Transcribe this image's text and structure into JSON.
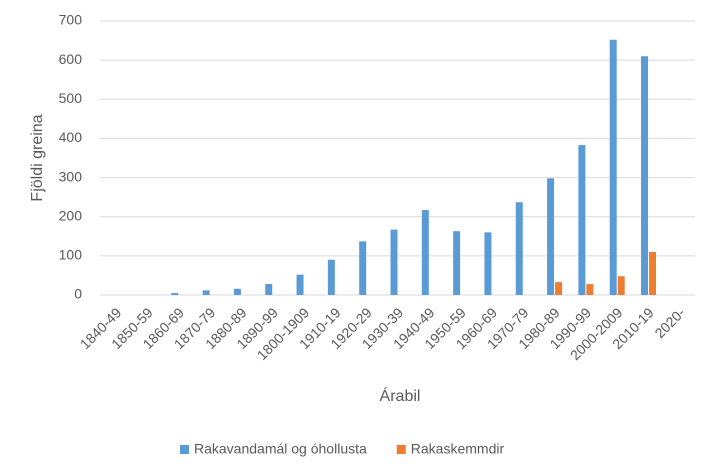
{
  "chart_data": {
    "type": "bar",
    "x_label": "Árabil",
    "y_label": "Fjöldi greina",
    "categories": [
      "1840-49",
      "1850-59",
      "1860-69",
      "1870-79",
      "1880-89",
      "1890-99",
      "1800-1909",
      "1910-19",
      "1920-29",
      "1930-39",
      "1940-49",
      "1950-59",
      "1960-69",
      "1970-79",
      "1980-89",
      "1990-99",
      "2000-2009",
      "2010-19",
      "2020-"
    ],
    "series": [
      {
        "name": "Rakavandamál og óhollusta",
        "color": "#5b9bd5",
        "values": [
          0,
          0,
          5,
          12,
          16,
          28,
          52,
          90,
          137,
          167,
          217,
          163,
          160,
          237,
          298,
          383,
          652,
          610,
          0
        ]
      },
      {
        "name": "Rakaskemmdir",
        "color": "#ed7d31",
        "values": [
          0,
          0,
          0,
          0,
          0,
          0,
          0,
          0,
          0,
          0,
          0,
          0,
          0,
          0,
          33,
          28,
          48,
          110,
          0
        ]
      }
    ],
    "ylim": [
      0,
      700
    ],
    "yticks": [
      0,
      100,
      200,
      300,
      400,
      500,
      600,
      700
    ],
    "grid": true,
    "legend": "bottom"
  }
}
